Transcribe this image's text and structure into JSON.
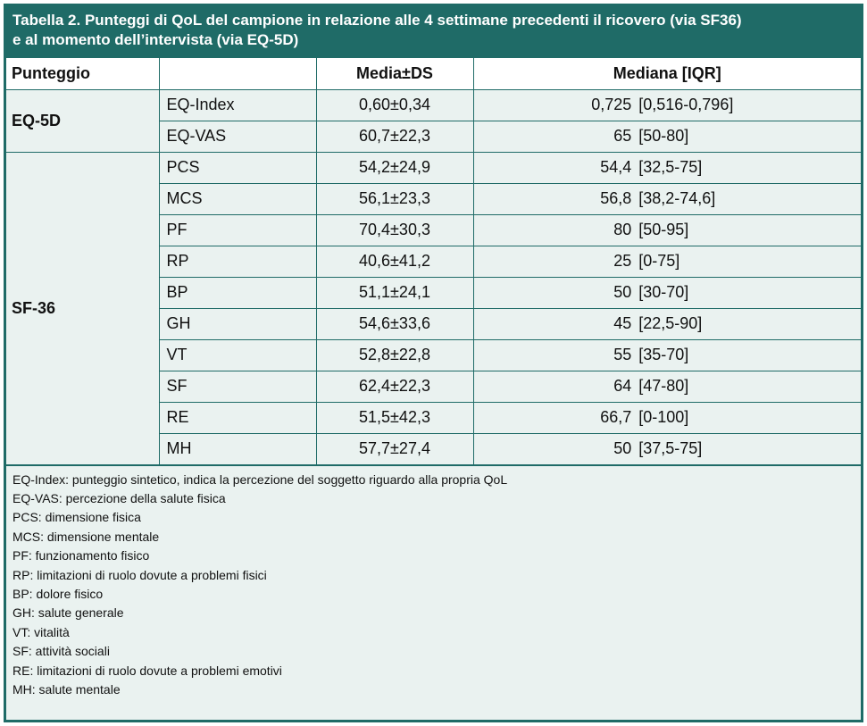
{
  "caption": {
    "line1": "Tabella 2. Punteggi di QoL del campione in relazione alle 4 settimane precedenti il ricovero (via SF36)",
    "line2": "e al momento dell’intervista (via EQ-5D)"
  },
  "header": {
    "score": "Punteggio",
    "empty": "",
    "mean": "Media±DS",
    "median": "Mediana [IQR]"
  },
  "groups": [
    {
      "name": "EQ-5D",
      "rows": [
        {
          "label": "EQ-Index",
          "mean": "0,60±0,34",
          "median": "0,725",
          "iqr": "[0,516-0,796]"
        },
        {
          "label": "EQ-VAS",
          "mean": "60,7±22,3",
          "median": "65",
          "iqr": "[50-80]"
        }
      ]
    },
    {
      "name": "SF-36",
      "rows": [
        {
          "label": "PCS",
          "mean": "54,2±24,9",
          "median": "54,4",
          "iqr": "[32,5-75]"
        },
        {
          "label": "MCS",
          "mean": "56,1±23,3",
          "median": "56,8",
          "iqr": "[38,2-74,6]"
        },
        {
          "label": "PF",
          "mean": "70,4±30,3",
          "median": "80",
          "iqr": "[50-95]"
        },
        {
          "label": "RP",
          "mean": "40,6±41,2",
          "median": "25",
          "iqr": "[0-75]"
        },
        {
          "label": "BP",
          "mean": "51,1±24,1",
          "median": "50",
          "iqr": "[30-70]"
        },
        {
          "label": "GH",
          "mean": "54,6±33,6",
          "median": "45",
          "iqr": "[22,5-90]"
        },
        {
          "label": "VT",
          "mean": "52,8±22,8",
          "median": "55",
          "iqr": "[35-70]"
        },
        {
          "label": "SF",
          "mean": "62,4±22,3",
          "median": "64",
          "iqr": "[47-80]"
        },
        {
          "label": "RE",
          "mean": "51,5±42,3",
          "median": "66,7",
          "iqr": "[0-100]"
        },
        {
          "label": "MH",
          "mean": "57,7±27,4",
          "median": "50",
          "iqr": "[37,5-75]"
        }
      ]
    }
  ],
  "notes": [
    "EQ-Index: punteggio sintetico, indica la percezione del soggetto riguardo alla propria QoL",
    "EQ-VAS: percezione della salute fisica",
    "PCS: dimensione fisica",
    "MCS: dimensione mentale",
    "PF: funzionamento fisico",
    "RP: limitazioni di ruolo dovute a problemi fisici",
    "BP: dolore fisico",
    "GH: salute generale",
    "VT: vitalità",
    "SF: attività sociali",
    "RE: limitazioni di ruolo dovute a problemi emotivi",
    "MH: salute mentale"
  ],
  "colors": {
    "accent": "#1f6b67",
    "body_bg": "#eaf2f0",
    "header_bg": "#ffffff"
  }
}
